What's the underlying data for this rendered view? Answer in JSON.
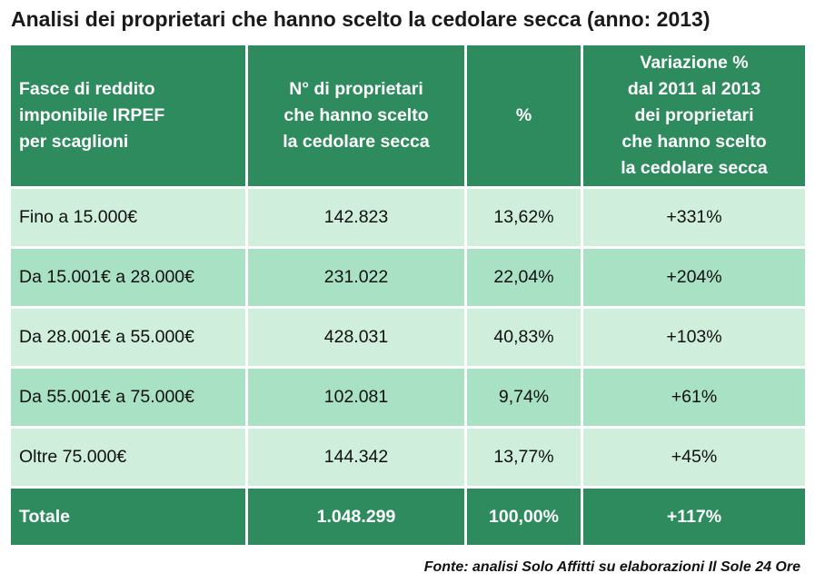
{
  "title": "Analisi dei proprietari che hanno scelto la cedolare secca (anno: 2013)",
  "table": {
    "headers": [
      "Fasce di reddito\nimponibile IRPEF\nper scaglioni",
      "N° di proprietari\nche hanno scelto\nla cedolare secca",
      "%",
      "Variazione %\ndal 2011 al 2013\ndei proprietari\nche hanno scelto\nla cedolare secca"
    ],
    "rows": [
      {
        "fascia": "Fino a 15.000€",
        "proprietari": "142.823",
        "percentuale": "13,62%",
        "variazione": "+331%"
      },
      {
        "fascia": "Da 15.001€ a 28.000€",
        "proprietari": "231.022",
        "percentuale": "22,04%",
        "variazione": "+204%"
      },
      {
        "fascia": "Da 28.001€ a 55.000€",
        "proprietari": "428.031",
        "percentuale": "40,83%",
        "variazione": "+103%"
      },
      {
        "fascia": "Da 55.001€ a 75.000€",
        "proprietari": "102.081",
        "percentuale": "9,74%",
        "variazione": "+61%"
      },
      {
        "fascia": "Oltre 75.000€",
        "proprietari": "144.342",
        "percentuale": "13,77%",
        "variazione": "+45%"
      }
    ],
    "total": {
      "fascia": "Totale",
      "proprietari": "1.048.299",
      "percentuale": "100,00%",
      "variazione": "+117%"
    }
  },
  "source": "Fonte: analisi Solo Affitti su elaborazioni Il Sole 24 Ore",
  "colors": {
    "header": "#2e8b5e",
    "row_light": "#cfeedb",
    "row_dark": "#a9e1c4"
  }
}
